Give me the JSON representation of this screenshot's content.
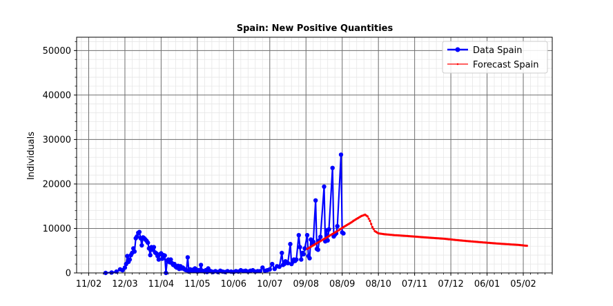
{
  "chart_data": {
    "type": "line",
    "title": "Spain: New Positive Quantities",
    "xlabel": "",
    "ylabel": "Individuals",
    "ylim": [
      0,
      53000
    ],
    "xlim": [
      "2020-02-01",
      "2021-03-01"
    ],
    "yticks": [
      0,
      10000,
      20000,
      30000,
      40000,
      50000
    ],
    "xticks": [
      {
        "date": "2020-02-11",
        "label": "11/02"
      },
      {
        "date": "2020-03-12",
        "label": "12/03"
      },
      {
        "date": "2020-04-11",
        "label": "11/04"
      },
      {
        "date": "2020-05-11",
        "label": "11/05"
      },
      {
        "date": "2020-06-10",
        "label": "10/06"
      },
      {
        "date": "2020-07-10",
        "label": "10/07"
      },
      {
        "date": "2020-08-09",
        "label": "09/08"
      },
      {
        "date": "2020-09-08",
        "label": "08/09"
      },
      {
        "date": "2020-10-08",
        "label": "08/10"
      },
      {
        "date": "2020-11-07",
        "label": "07/11"
      },
      {
        "date": "2020-12-07",
        "label": "07/12"
      },
      {
        "date": "2021-01-06",
        "label": "06/01"
      },
      {
        "date": "2021-02-05",
        "label": "05/02"
      }
    ],
    "grid": true,
    "legend_position": "top-right",
    "series": [
      {
        "name": "Data Spain",
        "color": "#0000ff",
        "marker": "circle",
        "points": [
          [
            "2020-02-25",
            0
          ],
          [
            "2020-03-01",
            100
          ],
          [
            "2020-03-05",
            300
          ],
          [
            "2020-03-08",
            800
          ],
          [
            "2020-03-10",
            600
          ],
          [
            "2020-03-12",
            1200
          ],
          [
            "2020-03-13",
            2000
          ],
          [
            "2020-03-14",
            3800
          ],
          [
            "2020-03-15",
            2500
          ],
          [
            "2020-03-16",
            3000
          ],
          [
            "2020-03-17",
            4000
          ],
          [
            "2020-03-18",
            4500
          ],
          [
            "2020-03-19",
            5500
          ],
          [
            "2020-03-20",
            4800
          ],
          [
            "2020-03-21",
            7800
          ],
          [
            "2020-03-22",
            8200
          ],
          [
            "2020-03-23",
            9000
          ],
          [
            "2020-03-24",
            9200
          ],
          [
            "2020-03-25",
            7800
          ],
          [
            "2020-03-26",
            6200
          ],
          [
            "2020-03-27",
            8000
          ],
          [
            "2020-03-28",
            7800
          ],
          [
            "2020-03-29",
            7500
          ],
          [
            "2020-03-30",
            7200
          ],
          [
            "2020-03-31",
            6800
          ],
          [
            "2020-04-01",
            5500
          ],
          [
            "2020-04-02",
            4000
          ],
          [
            "2020-04-03",
            5800
          ],
          [
            "2020-04-04",
            5200
          ],
          [
            "2020-04-05",
            5800
          ],
          [
            "2020-04-06",
            4600
          ],
          [
            "2020-04-07",
            4400
          ],
          [
            "2020-04-08",
            3800
          ],
          [
            "2020-04-09",
            3000
          ],
          [
            "2020-04-10",
            4200
          ],
          [
            "2020-04-11",
            4400
          ],
          [
            "2020-04-12",
            3200
          ],
          [
            "2020-04-13",
            4000
          ],
          [
            "2020-04-14",
            3900
          ],
          [
            "2020-04-15",
            0
          ],
          [
            "2020-04-16",
            2800
          ],
          [
            "2020-04-17",
            3000
          ],
          [
            "2020-04-18",
            2400
          ],
          [
            "2020-04-19",
            3000
          ],
          [
            "2020-04-20",
            2200
          ],
          [
            "2020-04-21",
            1800
          ],
          [
            "2020-04-22",
            2000
          ],
          [
            "2020-04-23",
            1400
          ],
          [
            "2020-04-24",
            1200
          ],
          [
            "2020-04-25",
            1600
          ],
          [
            "2020-04-26",
            900
          ],
          [
            "2020-04-27",
            1500
          ],
          [
            "2020-04-28",
            1000
          ],
          [
            "2020-04-29",
            1200
          ],
          [
            "2020-04-30",
            900
          ],
          [
            "2020-05-01",
            700
          ],
          [
            "2020-05-02",
            600
          ],
          [
            "2020-05-03",
            3500
          ],
          [
            "2020-05-04",
            300
          ],
          [
            "2020-05-05",
            800
          ],
          [
            "2020-05-06",
            500
          ],
          [
            "2020-05-07",
            700
          ],
          [
            "2020-05-08",
            400
          ],
          [
            "2020-05-09",
            1000
          ],
          [
            "2020-05-10",
            800
          ],
          [
            "2020-05-11",
            300
          ],
          [
            "2020-05-12",
            600
          ],
          [
            "2020-05-13",
            500
          ],
          [
            "2020-05-14",
            1800
          ],
          [
            "2020-05-15",
            500
          ],
          [
            "2020-05-16",
            400
          ],
          [
            "2020-05-17",
            300
          ],
          [
            "2020-05-18",
            600
          ],
          [
            "2020-05-19",
            200
          ],
          [
            "2020-05-20",
            1000
          ],
          [
            "2020-05-21",
            500
          ],
          [
            "2020-05-22",
            400
          ],
          [
            "2020-05-23",
            300
          ],
          [
            "2020-05-24",
            200
          ],
          [
            "2020-05-26",
            400
          ],
          [
            "2020-05-28",
            200
          ],
          [
            "2020-05-30",
            500
          ],
          [
            "2020-06-01",
            300
          ],
          [
            "2020-06-03",
            200
          ],
          [
            "2020-06-05",
            400
          ],
          [
            "2020-06-08",
            300
          ],
          [
            "2020-06-10",
            200
          ],
          [
            "2020-06-12",
            400
          ],
          [
            "2020-06-14",
            300
          ],
          [
            "2020-06-16",
            600
          ],
          [
            "2020-06-18",
            400
          ],
          [
            "2020-06-20",
            500
          ],
          [
            "2020-06-22",
            300
          ],
          [
            "2020-06-24",
            500
          ],
          [
            "2020-06-26",
            600
          ],
          [
            "2020-06-28",
            300
          ],
          [
            "2020-06-30",
            400
          ],
          [
            "2020-07-02",
            400
          ],
          [
            "2020-07-04",
            1200
          ],
          [
            "2020-07-06",
            500
          ],
          [
            "2020-07-08",
            600
          ],
          [
            "2020-07-10",
            800
          ],
          [
            "2020-07-12",
            2000
          ],
          [
            "2020-07-14",
            900
          ],
          [
            "2020-07-16",
            1500
          ],
          [
            "2020-07-18",
            1400
          ],
          [
            "2020-07-20",
            4500
          ],
          [
            "2020-07-21",
            1800
          ],
          [
            "2020-07-22",
            2000
          ],
          [
            "2020-07-23",
            2600
          ],
          [
            "2020-07-25",
            2200
          ],
          [
            "2020-07-27",
            6500
          ],
          [
            "2020-07-28",
            2000
          ],
          [
            "2020-07-29",
            2500
          ],
          [
            "2020-07-30",
            3000
          ],
          [
            "2020-07-31",
            2700
          ],
          [
            "2020-08-01",
            3000
          ],
          [
            "2020-08-03",
            8500
          ],
          [
            "2020-08-04",
            5800
          ],
          [
            "2020-08-05",
            3000
          ],
          [
            "2020-08-06",
            4500
          ],
          [
            "2020-08-07",
            4200
          ],
          [
            "2020-08-08",
            5500
          ],
          [
            "2020-08-10",
            8500
          ],
          [
            "2020-08-11",
            3800
          ],
          [
            "2020-08-12",
            3300
          ],
          [
            "2020-08-13",
            7500
          ],
          [
            "2020-08-14",
            6500
          ],
          [
            "2020-08-15",
            7000
          ],
          [
            "2020-08-17",
            16300
          ],
          [
            "2020-08-18",
            5400
          ],
          [
            "2020-08-19",
            5200
          ],
          [
            "2020-08-20",
            7300
          ],
          [
            "2020-08-21",
            8100
          ],
          [
            "2020-08-24",
            19400
          ],
          [
            "2020-08-25",
            7100
          ],
          [
            "2020-08-26",
            9600
          ],
          [
            "2020-08-27",
            7300
          ],
          [
            "2020-08-28",
            9800
          ],
          [
            "2020-08-31",
            23600
          ],
          [
            "2020-09-01",
            8200
          ],
          [
            "2020-09-02",
            8600
          ],
          [
            "2020-09-03",
            8900
          ],
          [
            "2020-09-04",
            10500
          ],
          [
            "2020-09-07",
            26600
          ],
          [
            "2020-09-08",
            9100
          ],
          [
            "2020-09-09",
            8900
          ]
        ]
      },
      {
        "name": "Forecast Spain",
        "color": "#ff0000",
        "marker": "dot",
        "points": [
          [
            "2020-08-10",
            5400
          ],
          [
            "2020-08-15",
            6200
          ],
          [
            "2020-08-20",
            7000
          ],
          [
            "2020-08-25",
            7800
          ],
          [
            "2020-08-30",
            8600
          ],
          [
            "2020-09-04",
            9400
          ],
          [
            "2020-09-09",
            10300
          ],
          [
            "2020-09-14",
            11100
          ],
          [
            "2020-09-19",
            12000
          ],
          [
            "2020-09-24",
            12800
          ],
          [
            "2020-09-27",
            13100
          ],
          [
            "2020-09-29",
            12700
          ],
          [
            "2020-10-01",
            11700
          ],
          [
            "2020-10-03",
            10300
          ],
          [
            "2020-10-05",
            9400
          ],
          [
            "2020-10-08",
            8900
          ],
          [
            "2020-10-13",
            8700
          ],
          [
            "2020-10-21",
            8500
          ],
          [
            "2020-11-01",
            8300
          ],
          [
            "2020-11-15",
            8000
          ],
          [
            "2020-12-01",
            7700
          ],
          [
            "2020-12-15",
            7300
          ],
          [
            "2021-01-01",
            6900
          ],
          [
            "2021-01-15",
            6600
          ],
          [
            "2021-02-01",
            6300
          ],
          [
            "2021-02-08",
            6100
          ]
        ]
      }
    ]
  }
}
